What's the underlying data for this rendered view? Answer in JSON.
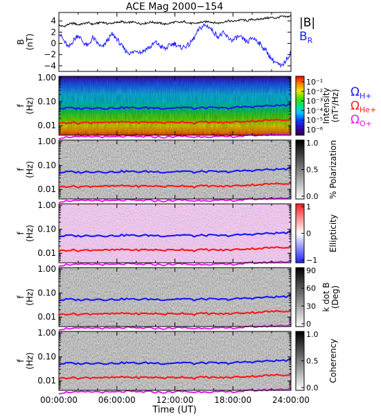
{
  "chart_data": {
    "title": "ACE Mag 2000−154",
    "xlabel": "Time (UT)",
    "x_ticks": [
      "00:00:00",
      "06:00:00",
      "12:00:00",
      "18:00:00",
      "24:00:00"
    ],
    "x_range_hours": [
      0,
      24
    ],
    "panels": [
      {
        "type": "line",
        "ylabel": "B",
        "yunit": "(nT)",
        "ylim": [
          -5,
          5.5
        ],
        "y_ticks": [
          "4",
          "2",
          "0",
          "−2",
          "−4"
        ],
        "y_tick_values": [
          4,
          2,
          0,
          -2,
          -4
        ],
        "series": [
          {
            "name": "|B|",
            "color": "#000000",
            "x": [
              0,
              0.5,
              1,
              1.5,
              2,
              2.5,
              3,
              3.5,
              4,
              4.5,
              5,
              5.5,
              6,
              6.5,
              7,
              7.5,
              8,
              8.5,
              9,
              9.5,
              10,
              10.5,
              11,
              11.5,
              12,
              12.5,
              13,
              13.5,
              14,
              14.5,
              15,
              15.5,
              16,
              16.5,
              17,
              17.5,
              18,
              18.5,
              19,
              19.5,
              20,
              20.5,
              21,
              21.5,
              22,
              22.5,
              23,
              23.5,
              24
            ],
            "y": [
              3.2,
              3.0,
              3.4,
              3.6,
              3.3,
              3.5,
              3.7,
              3.4,
              3.6,
              3.8,
              3.5,
              3.6,
              3.7,
              3.9,
              3.6,
              3.8,
              3.7,
              3.5,
              3.6,
              3.8,
              3.7,
              3.6,
              3.4,
              3.6,
              3.8,
              3.7,
              3.9,
              3.6,
              3.5,
              3.7,
              3.8,
              3.9,
              3.7,
              3.6,
              3.8,
              4.0,
              3.9,
              4.1,
              4.2,
              4.0,
              4.3,
              4.2,
              4.4,
              4.5,
              4.6,
              4.5,
              4.8,
              4.7,
              4.9
            ]
          },
          {
            "name": "B",
            "subscript": "R",
            "color": "#1a1aff",
            "x": [
              0,
              0.5,
              1,
              1.5,
              2,
              2.5,
              3,
              3.5,
              4,
              4.5,
              5,
              5.5,
              6,
              6.5,
              7,
              7.5,
              8,
              8.5,
              9,
              9.5,
              10,
              10.5,
              11,
              11.5,
              12,
              12.5,
              13,
              13.5,
              14,
              14.5,
              15,
              15.5,
              16,
              16.5,
              17,
              17.5,
              18,
              18.5,
              19,
              19.5,
              20,
              20.5,
              21,
              21.5,
              22,
              22.5,
              23,
              23.5,
              24
            ],
            "y": [
              2.0,
              0.5,
              -0.8,
              0.5,
              1.5,
              0.2,
              -0.5,
              1.0,
              0.0,
              -0.8,
              0.5,
              1.6,
              0.8,
              -0.5,
              -1.5,
              -1.8,
              -1.2,
              -1.6,
              -1.0,
              -0.6,
              0.2,
              -0.5,
              -1.0,
              -0.3,
              0.0,
              -0.8,
              -0.6,
              -0.2,
              1.0,
              2.5,
              3.2,
              3.0,
              2.0,
              1.2,
              1.8,
              1.0,
              0.5,
              1.2,
              0.8,
              0.2,
              1.0,
              0.5,
              -0.5,
              -1.5,
              -2.8,
              -3.5,
              -4.2,
              -3.0,
              -1.5
            ]
          }
        ],
        "legend": "right"
      },
      {
        "type": "heatmap",
        "ylabel": "f",
        "yunit": "(Hz)",
        "yscale": "log",
        "ylim": [
          0.004,
          1.15
        ],
        "y_ticks": [
          "1.00",
          "0.10",
          "0.01"
        ],
        "y_tick_values": [
          1.0,
          0.1,
          0.01
        ],
        "colorbar": {
          "label": "Intensity",
          "unit": "(nT²/Hz)",
          "ticks": [
            "10⁻¹",
            "10⁻²",
            "10⁻³",
            "10⁻⁴",
            "10⁻⁵",
            "10⁻⁶"
          ],
          "scale": "rainbow"
        },
        "overlay_legend": [
          {
            "name": "Ω",
            "subscript": "H+",
            "color": "#1a1aff"
          },
          {
            "name": "Ω",
            "subscript": "He+",
            "color": "#ff1a1a"
          },
          {
            "name": "Ω",
            "subscript": "O+",
            "color": "#e61ae6"
          }
        ]
      },
      {
        "type": "heatmap",
        "ylabel": "f",
        "yunit": "(Hz)",
        "yscale": "log",
        "ylim": [
          0.004,
          1.15
        ],
        "y_ticks": [
          "1.00",
          "0.10",
          "0.01"
        ],
        "y_tick_values": [
          1.0,
          0.1,
          0.01
        ],
        "colorbar": {
          "label": "% Polarization",
          "unit": "",
          "ticks": [
            "1.0",
            "0.5",
            "0.0"
          ],
          "scale": "gray"
        }
      },
      {
        "type": "heatmap",
        "ylabel": "f",
        "yunit": "(Hz)",
        "yscale": "log",
        "ylim": [
          0.004,
          1.15
        ],
        "y_ticks": [
          "1.00",
          "0.10",
          "0.01"
        ],
        "y_tick_values": [
          1.0,
          0.1,
          0.01
        ],
        "colorbar": {
          "label": "Ellipticity",
          "unit": "",
          "ticks": [
            "1",
            "0",
            "−1"
          ],
          "scale": "bluewhitered"
        }
      },
      {
        "type": "heatmap",
        "ylabel": "f",
        "yunit": "(Hz)",
        "yscale": "log",
        "ylim": [
          0.004,
          1.15
        ],
        "y_ticks": [
          "1.00",
          "0.10",
          "0.01"
        ],
        "y_tick_values": [
          1.0,
          0.1,
          0.01
        ],
        "colorbar": {
          "label": "k dot B",
          "unit": "(Deg)",
          "ticks": [
            "90",
            "60",
            "30",
            "0"
          ],
          "scale": "gray"
        }
      },
      {
        "type": "heatmap",
        "ylabel": "f",
        "yunit": "(Hz)",
        "yscale": "log",
        "ylim": [
          0.004,
          1.15
        ],
        "y_ticks": [
          "1.00",
          "0.10",
          "0.01"
        ],
        "y_tick_values": [
          1.0,
          0.1,
          0.01
        ],
        "colorbar": {
          "label": "Coherency",
          "unit": "",
          "ticks": [
            "1.0",
            "0.5",
            "0.0"
          ],
          "scale": "gray"
        }
      }
    ],
    "gyrofrequency_overlays": [
      {
        "name": "ΩH+",
        "color": "#1a1aff",
        "x": [
          0,
          1,
          2,
          3,
          4,
          5,
          6,
          7,
          8,
          9,
          10,
          11,
          12,
          13,
          14,
          15,
          16,
          17,
          18,
          19,
          20,
          21,
          22,
          23,
          24
        ],
        "y": [
          0.05,
          0.055,
          0.052,
          0.054,
          0.056,
          0.053,
          0.055,
          0.057,
          0.054,
          0.056,
          0.055,
          0.053,
          0.056,
          0.058,
          0.052,
          0.057,
          0.055,
          0.054,
          0.056,
          0.06,
          0.062,
          0.065,
          0.068,
          0.07,
          0.074
        ]
      },
      {
        "name": "ΩHe+",
        "color": "#ff1a1a",
        "x": [
          0,
          1,
          2,
          3,
          4,
          5,
          6,
          7,
          8,
          9,
          10,
          11,
          12,
          13,
          14,
          15,
          16,
          17,
          18,
          19,
          20,
          21,
          22,
          23,
          24
        ],
        "y": [
          0.0125,
          0.0138,
          0.013,
          0.0135,
          0.014,
          0.0133,
          0.0138,
          0.0143,
          0.0135,
          0.014,
          0.0138,
          0.0133,
          0.014,
          0.0145,
          0.013,
          0.0143,
          0.0138,
          0.0135,
          0.014,
          0.015,
          0.0155,
          0.0163,
          0.017,
          0.0175,
          0.0185
        ]
      },
      {
        "name": "ΩO+",
        "color": "#e61ae6",
        "x": [
          0,
          1,
          2,
          3,
          4,
          5,
          6,
          7,
          8,
          9,
          10,
          11,
          12,
          13,
          14,
          15,
          16,
          17,
          18,
          19,
          20,
          21,
          22,
          23,
          24
        ],
        "y": [
          0.0031,
          0.0034,
          0.0033,
          0.0034,
          0.0035,
          0.0033,
          0.0034,
          0.0036,
          0.0034,
          0.0035,
          0.0034,
          0.0033,
          0.0035,
          0.0036,
          0.0033,
          0.0036,
          0.0034,
          0.0034,
          0.0035,
          0.0037,
          0.0039,
          0.0041,
          0.0043,
          0.0044,
          0.0046
        ]
      }
    ],
    "colors": {
      "axis": "#000000",
      "background": "#ffffff",
      "blue": "#1a1aff",
      "red": "#ff1a1a",
      "magenta": "#e61ae6"
    }
  }
}
